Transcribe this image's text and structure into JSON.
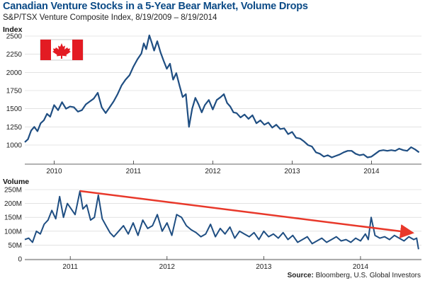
{
  "header": {
    "title": "Canadian Venture Stocks in a 5-Year Bear Market, Volume Drops",
    "subtitle": "S&P/TSX Venture Composite Index, 8/19/2009 – 8/19/2014",
    "source_label": "Source:",
    "source_text": "Bloomberg, U.S. Global Investors"
  },
  "colors": {
    "line": "#1f4e82",
    "trend_arrow": "#e8382a",
    "grid": "#d0d0d0",
    "flag_red": "#e31b23"
  },
  "icons": {
    "flag": "canada-flag-icon"
  },
  "chart_data": [
    {
      "type": "line",
      "title": "S&P/TSX Venture Composite Index",
      "ylabel": "Index",
      "ylim": [
        750,
        2500
      ],
      "yticks": [
        1000,
        1250,
        1500,
        1750,
        2000,
        2250,
        2500
      ],
      "ytick_labels": [
        "1000",
        "1250",
        "1500",
        "1750",
        "2000",
        "2250",
        "2500"
      ],
      "xlim": [
        2009.63,
        2014.63
      ],
      "xticks": [
        2010,
        2011,
        2012,
        2013,
        2014
      ],
      "xtick_labels": [
        "2010",
        "2011",
        "2012",
        "2013",
        "2014"
      ],
      "grid": true,
      "series": [
        {
          "x": [
            2009.63,
            2009.67,
            2009.71,
            2009.75,
            2009.79,
            2009.83,
            2009.87,
            2009.91,
            2009.95,
            2010.0,
            2010.05,
            2010.1,
            2010.15,
            2010.2,
            2010.25,
            2010.3,
            2010.35,
            2010.4,
            2010.45,
            2010.5,
            2010.55,
            2010.6,
            2010.65,
            2010.7,
            2010.75,
            2010.8,
            2010.85,
            2010.9,
            2010.95,
            2011.0,
            2011.05,
            2011.1,
            2011.13,
            2011.16,
            2011.2,
            2011.23,
            2011.26,
            2011.3,
            2011.34,
            2011.38,
            2011.42,
            2011.46,
            2011.5,
            2011.54,
            2011.58,
            2011.62,
            2011.66,
            2011.7,
            2011.74,
            2011.78,
            2011.82,
            2011.86,
            2011.9,
            2011.95,
            2012.0,
            2012.05,
            2012.1,
            2012.14,
            2012.18,
            2012.22,
            2012.26,
            2012.3,
            2012.35,
            2012.4,
            2012.45,
            2012.5,
            2012.55,
            2012.6,
            2012.65,
            2012.7,
            2012.75,
            2012.8,
            2012.85,
            2012.9,
            2012.95,
            2013.0,
            2013.05,
            2013.1,
            2013.15,
            2013.2,
            2013.25,
            2013.3,
            2013.35,
            2013.4,
            2013.45,
            2013.5,
            2013.55,
            2013.6,
            2013.65,
            2013.7,
            2013.75,
            2013.8,
            2013.85,
            2013.9,
            2013.95,
            2014.0,
            2014.05,
            2014.1,
            2014.15,
            2014.2,
            2014.25,
            2014.3,
            2014.35,
            2014.4,
            2014.45,
            2014.5,
            2014.55,
            2014.6
          ],
          "y": [
            1040,
            1080,
            1200,
            1250,
            1190,
            1300,
            1340,
            1430,
            1390,
            1550,
            1480,
            1590,
            1500,
            1530,
            1520,
            1460,
            1480,
            1560,
            1600,
            1640,
            1720,
            1520,
            1440,
            1520,
            1600,
            1700,
            1820,
            1900,
            1960,
            2080,
            2180,
            2260,
            2400,
            2320,
            2510,
            2410,
            2300,
            2430,
            2280,
            2160,
            2050,
            2120,
            1900,
            1990,
            1820,
            1660,
            1700,
            1250,
            1500,
            1650,
            1560,
            1450,
            1550,
            1620,
            1490,
            1620,
            1660,
            1700,
            1580,
            1530,
            1450,
            1440,
            1380,
            1420,
            1360,
            1410,
            1300,
            1340,
            1280,
            1310,
            1240,
            1280,
            1220,
            1230,
            1150,
            1180,
            1100,
            1090,
            1050,
            1000,
            980,
            900,
            880,
            840,
            860,
            830,
            850,
            870,
            900,
            920,
            920,
            880,
            860,
            870,
            830,
            840,
            880,
            920,
            930,
            920,
            930,
            920,
            950,
            930,
            920,
            970,
            940,
            900
          ]
        }
      ]
    },
    {
      "type": "line",
      "title": "Volume",
      "ylabel": "Volume",
      "ylim": [
        0,
        250
      ],
      "yticks": [
        0,
        50,
        100,
        150,
        200,
        250
      ],
      "ytick_labels": [
        "0",
        "50M",
        "100M",
        "150M",
        "200M",
        "250M"
      ],
      "xlim": [
        2010.53,
        2014.63
      ],
      "xticks": [
        2011,
        2012,
        2013,
        2014
      ],
      "xtick_labels": [
        "2011",
        "2012",
        "2013",
        "2014"
      ],
      "grid": true,
      "series": [
        {
          "x": [
            2010.53,
            2010.57,
            2010.61,
            2010.65,
            2010.69,
            2010.73,
            2010.77,
            2010.81,
            2010.85,
            2010.89,
            2010.93,
            2010.97,
            2011.01,
            2011.05,
            2011.1,
            2011.13,
            2011.17,
            2011.21,
            2011.25,
            2011.29,
            2011.33,
            2011.37,
            2011.41,
            2011.45,
            2011.5,
            2011.55,
            2011.6,
            2011.65,
            2011.7,
            2011.75,
            2011.8,
            2011.85,
            2011.9,
            2011.95,
            2012.0,
            2012.05,
            2012.1,
            2012.15,
            2012.2,
            2012.25,
            2012.3,
            2012.35,
            2012.4,
            2012.45,
            2012.5,
            2012.55,
            2012.6,
            2012.65,
            2012.7,
            2012.75,
            2012.8,
            2012.85,
            2012.9,
            2012.95,
            2013.0,
            2013.05,
            2013.1,
            2013.15,
            2013.2,
            2013.25,
            2013.3,
            2013.35,
            2013.4,
            2013.45,
            2013.5,
            2013.55,
            2013.6,
            2013.65,
            2013.7,
            2013.75,
            2013.8,
            2013.85,
            2013.9,
            2013.95,
            2014.0,
            2014.05,
            2014.08,
            2014.11,
            2014.15,
            2014.2,
            2014.25,
            2014.3,
            2014.35,
            2014.4,
            2014.45,
            2014.5,
            2014.55,
            2014.58,
            2014.6
          ],
          "y": [
            70,
            75,
            60,
            100,
            90,
            125,
            140,
            175,
            145,
            225,
            150,
            200,
            180,
            160,
            245,
            180,
            195,
            140,
            150,
            230,
            145,
            120,
            95,
            80,
            100,
            120,
            90,
            130,
            85,
            140,
            110,
            120,
            160,
            100,
            130,
            85,
            160,
            150,
            120,
            105,
            95,
            80,
            90,
            125,
            80,
            110,
            90,
            115,
            75,
            100,
            90,
            80,
            95,
            70,
            100,
            80,
            90,
            75,
            95,
            70,
            85,
            60,
            70,
            80,
            55,
            65,
            75,
            60,
            70,
            80,
            65,
            70,
            60,
            75,
            65,
            90,
            70,
            150,
            85,
            75,
            80,
            70,
            85,
            75,
            65,
            80,
            70,
            75,
            35
          ]
        }
      ],
      "annotations": [
        {
          "type": "trend-arrow",
          "from": [
            2011.1,
            245
          ],
          "to": [
            2014.63,
            95
          ]
        }
      ]
    }
  ]
}
